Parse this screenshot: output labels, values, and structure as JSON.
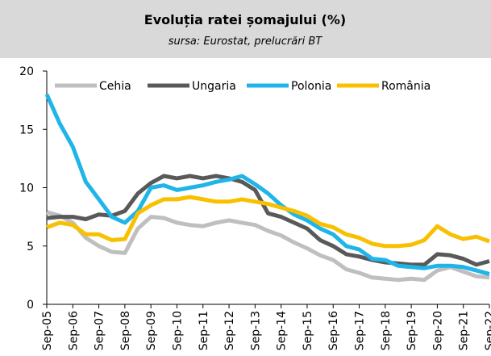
{
  "chart_data": {
    "type": "line",
    "title": "Evoluția ratei șomajului (%)",
    "subtitle": "sursa: Eurostat, prelucrări BT",
    "categories": [
      "Sep-05",
      null,
      "Sep-06",
      null,
      "Sep-07",
      null,
      "Sep-08",
      null,
      "Sep-09",
      null,
      "Sep-10",
      null,
      "Sep-11",
      null,
      "Sep-12",
      null,
      "Sep-13",
      null,
      "Sep-14",
      null,
      "Sep-15",
      null,
      "Sep-16",
      null,
      "Sep-17",
      null,
      "Sep-18",
      null,
      "Sep-19",
      null,
      "Sep-20",
      null,
      "Sep-21",
      null,
      "Sep-22"
    ],
    "series": [
      {
        "name": "Cehia",
        "color": "#bfbfbf",
        "values": [
          7.9,
          7.6,
          7.0,
          5.7,
          5.0,
          4.5,
          4.4,
          6.5,
          7.5,
          7.4,
          7.0,
          6.8,
          6.7,
          7.0,
          7.2,
          7.0,
          6.8,
          6.3,
          5.9,
          5.3,
          4.8,
          4.2,
          3.8,
          3.0,
          2.7,
          2.3,
          2.2,
          2.1,
          2.2,
          2.1,
          2.9,
          3.2,
          2.8,
          2.4,
          2.3
        ]
      },
      {
        "name": "Ungaria",
        "color": "#595959",
        "values": [
          7.4,
          7.5,
          7.5,
          7.3,
          7.7,
          7.6,
          8.0,
          9.5,
          10.4,
          11.0,
          10.8,
          11.0,
          10.8,
          11.0,
          10.8,
          10.5,
          9.8,
          7.8,
          7.5,
          7.0,
          6.5,
          5.5,
          5.0,
          4.3,
          4.1,
          3.8,
          3.6,
          3.5,
          3.4,
          3.4,
          4.3,
          4.2,
          3.9,
          3.4,
          3.7
        ]
      },
      {
        "name": "Polonia",
        "color": "#1fb5e9",
        "values": [
          18.0,
          15.5,
          13.5,
          10.5,
          9.0,
          7.5,
          7.0,
          8.0,
          10.0,
          10.2,
          9.8,
          10.0,
          10.2,
          10.5,
          10.7,
          11.0,
          10.3,
          9.5,
          8.5,
          7.7,
          7.2,
          6.5,
          6.0,
          5.0,
          4.7,
          3.9,
          3.8,
          3.3,
          3.2,
          3.1,
          3.3,
          3.3,
          3.2,
          2.9,
          2.6
        ]
      },
      {
        "name": "România",
        "color": "#f8c000",
        "values": [
          6.6,
          7.0,
          6.8,
          6.0,
          6.0,
          5.5,
          5.6,
          7.8,
          8.5,
          9.0,
          9.0,
          9.2,
          9.0,
          8.8,
          8.8,
          9.0,
          8.8,
          8.6,
          8.3,
          8.0,
          7.6,
          6.9,
          6.6,
          6.0,
          5.7,
          5.2,
          5.0,
          5.0,
          5.1,
          5.5,
          6.7,
          6.0,
          5.6,
          5.8,
          5.4
        ]
      }
    ],
    "ylim": [
      0,
      20
    ],
    "yticks": [
      0,
      5,
      10,
      15,
      20
    ],
    "legend": "top"
  }
}
